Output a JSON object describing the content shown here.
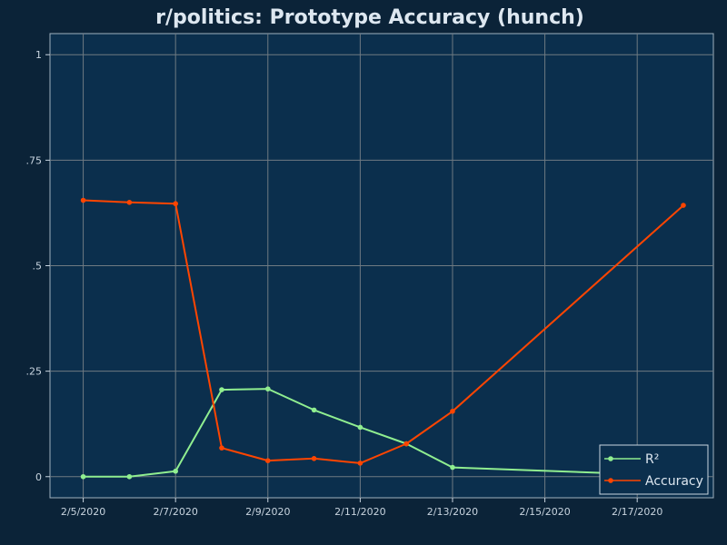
{
  "chart_data": {
    "type": "line",
    "title": "r/politics: Prototype Accuracy (hunch)",
    "xlabel": "",
    "ylabel": "",
    "ylim": [
      -0.05,
      1.05
    ],
    "x_tick_labels": [
      "2/5/2020",
      "2/7/2020",
      "2/9/2020",
      "2/11/2020",
      "2/13/2020",
      "2/15/2020",
      "2/17/2020"
    ],
    "y_tick_labels": [
      "0",
      ".25",
      ".5",
      ".75",
      "1"
    ],
    "y_ticks": [
      0,
      0.25,
      0.5,
      0.75,
      1
    ],
    "grid": true,
    "legend_position": "bottom-right",
    "x": [
      "2020-02-05",
      "2020-02-06",
      "2020-02-07",
      "2020-02-08",
      "2020-02-09",
      "2020-02-10",
      "2020-02-11",
      "2020-02-12",
      "2020-02-13",
      "2020-02-17",
      "2020-02-18"
    ],
    "series": [
      {
        "name": "R²",
        "color": "#90ee90",
        "values": [
          0.0,
          0.0,
          0.013,
          0.206,
          0.208,
          0.158,
          0.117,
          0.078,
          0.022,
          0.006,
          null
        ]
      },
      {
        "name": "Accuracy",
        "color": "#ff4500",
        "values": [
          0.655,
          0.65,
          0.647,
          0.068,
          0.038,
          0.043,
          0.032,
          0.078,
          0.155,
          null,
          0.643
        ]
      }
    ]
  },
  "colors": {
    "background": "#0b2338",
    "plot_background": "#0b2f4d",
    "axis": "#c8d4df",
    "grid": "#6f7a82"
  }
}
